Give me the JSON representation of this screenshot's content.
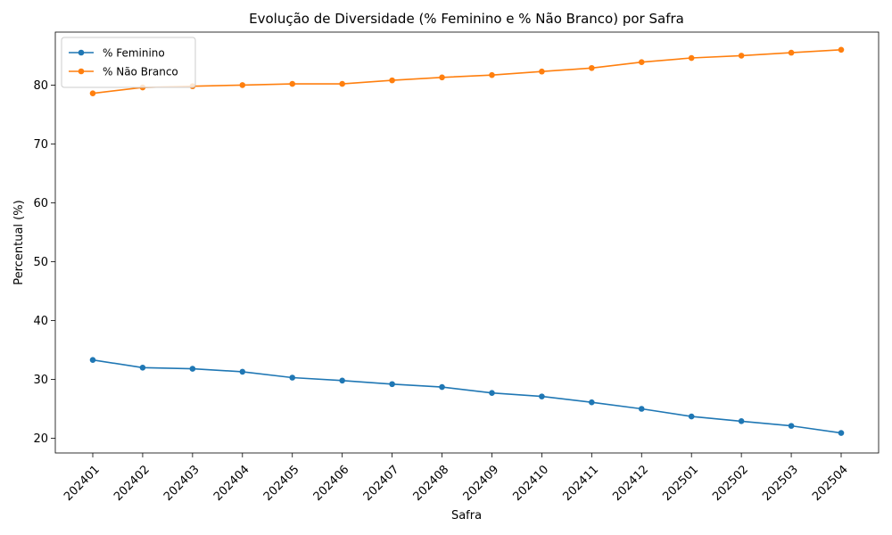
{
  "chart_data": {
    "type": "line",
    "title": "Evolução de Diversidade (% Feminino e % Não Branco) por Safra",
    "xlabel": "Safra",
    "ylabel": "Percentual (%)",
    "categories": [
      "202401",
      "202402",
      "202403",
      "202404",
      "202405",
      "202406",
      "202407",
      "202408",
      "202409",
      "202410",
      "202411",
      "202412",
      "202501",
      "202502",
      "202503",
      "202504"
    ],
    "yticks": [
      20,
      30,
      40,
      50,
      60,
      70,
      80
    ],
    "ylim": [
      17.5,
      89.0
    ],
    "grid": false,
    "legend_position": "top-left",
    "series": [
      {
        "name": "% Feminino",
        "color": "#1f77b4",
        "values": [
          33.3,
          32.0,
          31.8,
          31.3,
          30.3,
          29.8,
          29.2,
          28.7,
          27.7,
          27.1,
          26.1,
          25.0,
          23.7,
          22.9,
          22.1,
          20.9
        ]
      },
      {
        "name": "% Não Branco",
        "color": "#ff7f0e",
        "values": [
          78.6,
          79.6,
          79.8,
          80.0,
          80.2,
          80.2,
          80.8,
          81.3,
          81.7,
          82.3,
          82.9,
          83.9,
          84.6,
          85.0,
          85.5,
          86.0
        ]
      }
    ]
  }
}
